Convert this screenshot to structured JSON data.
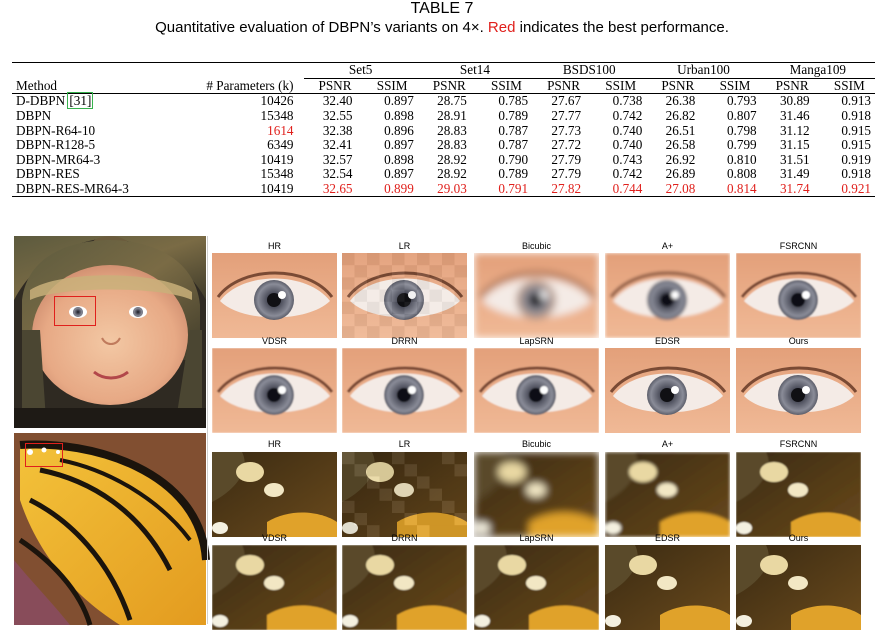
{
  "caption": {
    "label": "TABLE 7",
    "text_before": "Quantitative evaluation of DBPN’s variants on 4×. ",
    "text_red": "Red",
    "text_after": " indicates the best performance."
  },
  "table": {
    "col_method": "Method",
    "col_params": "# Parameters (k)",
    "datasets": [
      "Set5",
      "Set14",
      "BSDS100",
      "Urban100",
      "Manga109"
    ],
    "metric_psnr": "PSNR",
    "metric_ssim": "SSIM",
    "rows": [
      {
        "method": "D-DBPN",
        "cite": "[31]",
        "params": "10426",
        "vals": [
          "32.40",
          "0.897",
          "28.75",
          "0.785",
          "27.67",
          "0.738",
          "26.38",
          "0.793",
          "30.89",
          "0.913"
        ]
      },
      {
        "method": "DBPN",
        "cite": "",
        "params": "15348",
        "vals": [
          "32.55",
          "0.898",
          "28.91",
          "0.789",
          "27.77",
          "0.742",
          "26.82",
          "0.807",
          "31.46",
          "0.918"
        ]
      },
      {
        "method": "DBPN-R64-10",
        "cite": "",
        "params": "1614",
        "vals": [
          "32.38",
          "0.896",
          "28.83",
          "0.787",
          "27.73",
          "0.740",
          "26.51",
          "0.798",
          "31.12",
          "0.915"
        ]
      },
      {
        "method": "DBPN-R128-5",
        "cite": "",
        "params": "6349",
        "vals": [
          "32.41",
          "0.897",
          "28.83",
          "0.787",
          "27.72",
          "0.740",
          "26.58",
          "0.799",
          "31.15",
          "0.915"
        ]
      },
      {
        "method": "DBPN-MR64-3",
        "cite": "",
        "params": "10419",
        "vals": [
          "32.57",
          "0.898",
          "28.92",
          "0.790",
          "27.79",
          "0.743",
          "26.92",
          "0.810",
          "31.51",
          "0.919"
        ]
      },
      {
        "method": "DBPN-RES",
        "cite": "",
        "params": "15348",
        "vals": [
          "32.54",
          "0.897",
          "28.92",
          "0.789",
          "27.79",
          "0.742",
          "26.89",
          "0.808",
          "31.49",
          "0.918"
        ]
      },
      {
        "method": "DBPN-RES-MR64-3",
        "cite": "",
        "params": "10419",
        "vals": [
          "32.65",
          "0.899",
          "29.03",
          "0.791",
          "27.82",
          "0.744",
          "27.08",
          "0.814",
          "31.74",
          "0.921"
        ]
      }
    ],
    "best_color": "#e0201c"
  },
  "figure": {
    "row1_labels_top": [
      "HR",
      "LR",
      "Bicubic",
      "A+",
      "FSRCNN"
    ],
    "row1_labels_bottom": [
      "VDSR",
      "DRRN",
      "LapSRN",
      "EDSR",
      "Ours"
    ],
    "row2_labels_top": [
      "HR",
      "LR",
      "Bicubic",
      "A+",
      "FSRCNN"
    ],
    "row2_labels_bottom": [
      "VDSR",
      "DRRN",
      "LapSRN",
      "EDSR",
      "Ours"
    ]
  }
}
